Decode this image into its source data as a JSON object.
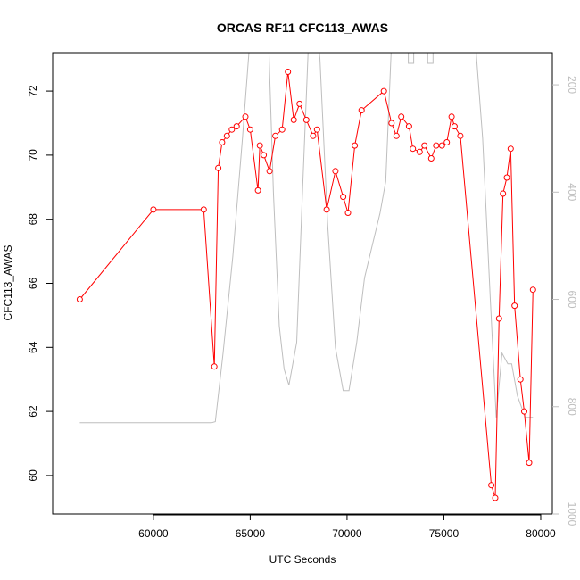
{
  "chart_data": {
    "type": "line",
    "title": "ORCAS RF11 CFC113_AWAS",
    "xlabel": "UTC Seconds",
    "ylabel": "CFC113_AWAS",
    "xlim": [
      54800,
      80600
    ],
    "ylim": [
      58.8,
      73.2
    ],
    "y2lim": [
      1000,
      140
    ],
    "y2_inverted": true,
    "x_ticks": [
      60000,
      65000,
      70000,
      75000,
      80000
    ],
    "x_tick_labels": [
      "60000",
      "65000",
      "70000",
      "75000",
      "80000"
    ],
    "y_ticks": [
      60,
      62,
      64,
      66,
      68,
      70,
      72
    ],
    "y_tick_labels": [
      "60",
      "62",
      "64",
      "66",
      "68",
      "70",
      "72"
    ],
    "y2_ticks": [
      200,
      400,
      600,
      800,
      1000
    ],
    "y2_tick_labels": [
      "200",
      "400",
      "600",
      "800",
      "1000"
    ],
    "grid": false,
    "series": [
      {
        "color": "#ff0000",
        "axis": "left",
        "markers": "open-circle",
        "x": [
          56200,
          60000,
          62600,
          63150,
          63350,
          63550,
          63800,
          64050,
          64300,
          64750,
          65000,
          65400,
          65500,
          65700,
          66000,
          66300,
          66650,
          66950,
          67250,
          67550,
          67900,
          68250,
          68450,
          68950,
          69400,
          69800,
          70050,
          70400,
          70750,
          71900,
          72300,
          72550,
          72800,
          73200,
          73400,
          73750,
          74000,
          74350,
          74600,
          74900,
          75150,
          75400,
          75550,
          75850,
          77450,
          77650,
          77850,
          78050,
          78250,
          78450,
          78650,
          78950,
          79150,
          79400,
          79600
        ],
        "y": [
          65.5,
          68.3,
          68.3,
          63.4,
          69.6,
          70.4,
          70.6,
          70.8,
          70.9,
          71.2,
          70.8,
          68.9,
          70.3,
          70.0,
          69.5,
          70.6,
          70.8,
          72.6,
          71.1,
          71.6,
          71.1,
          70.6,
          70.8,
          68.3,
          69.5,
          68.7,
          68.2,
          70.3,
          71.4,
          72.0,
          71.0,
          70.6,
          71.2,
          70.9,
          70.2,
          70.1,
          70.3,
          69.9,
          70.3,
          70.3,
          70.4,
          71.2,
          70.9,
          70.6,
          59.7,
          59.3,
          64.9,
          68.8,
          69.3,
          70.2,
          65.3,
          63.0,
          62.0,
          60.4,
          65.8
        ]
      },
      {
        "color": "#bebebe",
        "axis": "right",
        "markers": "none",
        "x": [
          56200,
          60000,
          63000,
          63200,
          63600,
          64100,
          64600,
          65100,
          65600,
          65900,
          66200,
          66500,
          66750,
          67000,
          67400,
          67700,
          68000,
          68300,
          68600,
          69000,
          69400,
          69800,
          70100,
          70500,
          70900,
          71300,
          71700,
          72000,
          72300,
          72500,
          73000,
          73300,
          73500,
          74000,
          74300,
          74700,
          75000,
          75300,
          75700,
          76100,
          76500,
          77000,
          77400,
          77700,
          78000,
          78300,
          78500,
          78800,
          79200,
          79600
        ],
        "y": [
          830,
          830,
          830,
          828,
          700,
          520,
          300,
          60,
          60,
          60,
          400,
          650,
          730,
          760,
          680,
          400,
          130,
          60,
          150,
          460,
          690,
          770,
          770,
          680,
          560,
          500,
          440,
          380,
          120,
          60,
          60,
          60,
          60,
          60,
          60,
          60,
          60,
          60,
          60,
          60,
          60,
          300,
          600,
          820,
          700,
          720,
          720,
          780,
          820,
          820
        ]
      }
    ],
    "right_axis_marks": [
      {
        "x": 73300,
        "y": 150
      },
      {
        "x": 74300,
        "y": 150
      }
    ]
  }
}
